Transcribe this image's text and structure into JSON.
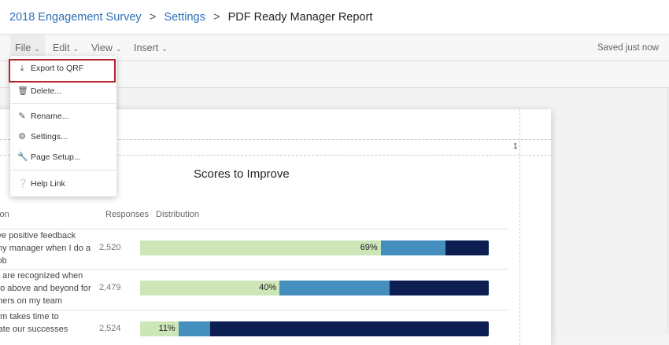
{
  "breadcrumb": {
    "survey": "2018 Engagement Survey",
    "settings": "Settings",
    "current": "PDF Ready Manager Report",
    "separator": ">"
  },
  "toolbar": {
    "menus": [
      "File",
      "Edit",
      "View",
      "Insert"
    ],
    "status": "Saved just now"
  },
  "file_menu": {
    "items": [
      {
        "label": "Export to QRF",
        "icon": "download-icon",
        "highlighted": true
      },
      {
        "label": "Delete...",
        "icon": "trash-icon"
      },
      {
        "label": "Rename...",
        "icon": "pencil-icon"
      },
      {
        "label": "Settings...",
        "icon": "gear-icon"
      },
      {
        "label": "Page Setup...",
        "icon": "wrench-icon"
      },
      {
        "label": "Help Link",
        "icon": "help-icon"
      }
    ],
    "highlight_color": "#b3262c"
  },
  "page": {
    "number": "1",
    "title": "Scores to Improve",
    "columns": [
      "tion",
      "Responses",
      "Distribution"
    ],
    "rows": [
      {
        "question": [
          "ive positive feedback",
          "my manager when I do a",
          "job"
        ],
        "responses": "2,520",
        "label": "69%",
        "segments": [
          69,
          18.5,
          12.5
        ]
      },
      {
        "question": [
          "e are recognized when",
          "go above and beyond for",
          "mers on my team"
        ],
        "responses": "2,479",
        "label": "40%",
        "segments": [
          40,
          31.6,
          28.4
        ]
      },
      {
        "question": [
          "am takes time to",
          "rate our successes"
        ],
        "responses": "2,524",
        "label": "11%",
        "segments": [
          11,
          9,
          80
        ]
      }
    ],
    "colors": [
      "#cde6b8",
      "#458fbf",
      "#0d1f52"
    ]
  }
}
